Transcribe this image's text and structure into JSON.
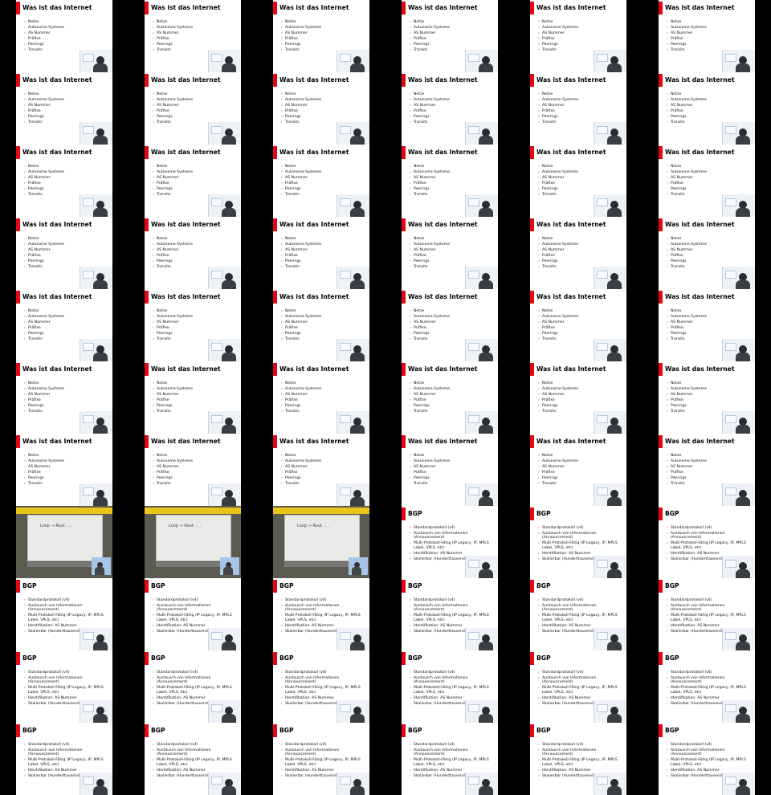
{
  "accent_color": "#e30613",
  "slides": {
    "internet": {
      "title": "Was ist das Internet",
      "bullets": [
        "Netze",
        "Autonome Systeme",
        "AS Nummer",
        "Präfixe",
        "Peerings",
        "Transits"
      ]
    },
    "bgp": {
      "title": "BGP",
      "bullets": [
        "Standardprotokoll (v4)",
        "Austausch von Informationen (Announcement)",
        "Multi-Protokoll-Fähig (IP Legacy, IP, MPLS Label, VPLS, etc)",
        "Identifikation: AS Nummer",
        "Skalierbar (Hunderttausende Routen)"
      ]
    },
    "whiteboard": {
      "scribble": "Loop → Rout  . . .  ",
      "icon": "whiteboard-photo"
    }
  },
  "grid": {
    "columns": 6,
    "rows": 11,
    "frames": [
      "internet",
      "internet",
      "internet",
      "internet",
      "internet",
      "internet",
      "internet",
      "internet",
      "internet",
      "internet",
      "internet",
      "internet",
      "internet",
      "internet",
      "internet",
      "internet",
      "internet",
      "internet",
      "internet",
      "internet",
      "internet",
      "internet",
      "internet",
      "internet",
      "internet",
      "internet",
      "internet",
      "internet",
      "internet",
      "internet",
      "internet",
      "internet",
      "internet",
      "internet",
      "internet",
      "internet",
      "internet",
      "internet",
      "internet",
      "internet",
      "internet",
      "internet",
      "whiteboard",
      "whiteboard",
      "whiteboard",
      "bgp",
      "bgp",
      "bgp",
      "bgp",
      "bgp",
      "bgp",
      "bgp",
      "bgp",
      "bgp",
      "bgp",
      "bgp",
      "bgp",
      "bgp",
      "bgp",
      "bgp",
      "bgp",
      "bgp",
      "bgp",
      "bgp",
      "bgp",
      "bgp"
    ]
  }
}
